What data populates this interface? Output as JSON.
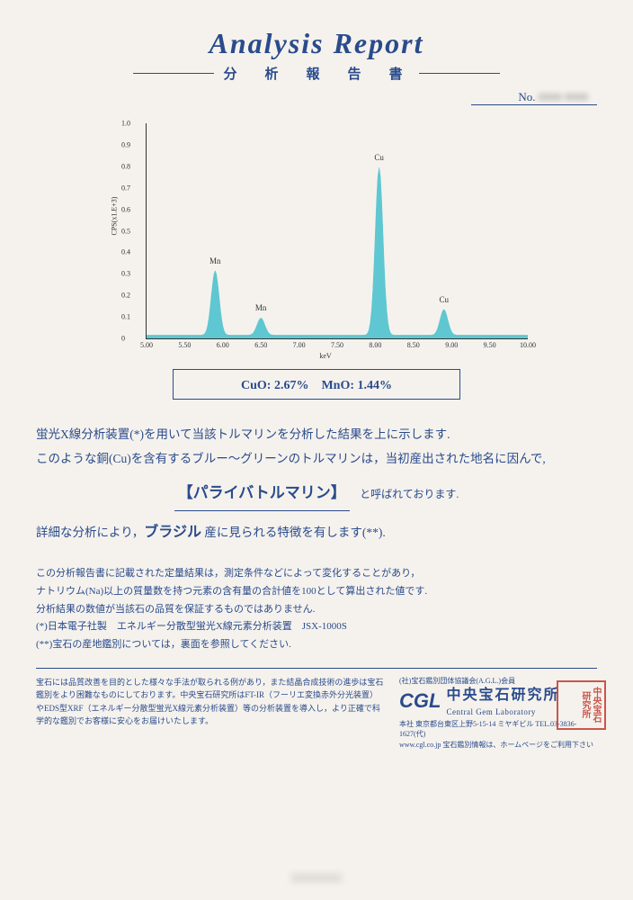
{
  "header": {
    "title": "Analysis  Report",
    "subtitle": "分　析　報　告　書",
    "no_label": "No.",
    "no_value": "0000 0000"
  },
  "chart": {
    "type": "area-spectrum",
    "xlabel": "keV",
    "ylabel": "CPS(x1.E+3)",
    "xlim": [
      5.0,
      10.0
    ],
    "ylim": [
      0,
      1.0
    ],
    "xtick_step": 0.5,
    "ytick_step": 0.1,
    "xticks": [
      "5.00",
      "5.50",
      "6.00",
      "6.50",
      "7.00",
      "7.50",
      "8.00",
      "8.50",
      "9.00",
      "9.50",
      "10.00"
    ],
    "yticks": [
      "0",
      "0.1",
      "0.2",
      "0.3",
      "0.4",
      "0.5",
      "0.6",
      "0.7",
      "0.8",
      "0.9",
      "1.0"
    ],
    "fill_color": "#5ec7d1",
    "stroke_color": "#5ec7d1",
    "background_color": "#f5f2ed",
    "axis_color": "#333333",
    "label_fontsize": 8,
    "peaks": [
      {
        "x": 5.9,
        "height": 0.3,
        "width": 0.12,
        "label": "Mn"
      },
      {
        "x": 6.5,
        "height": 0.08,
        "width": 0.12,
        "label": "Mn"
      },
      {
        "x": 8.05,
        "height": 0.78,
        "width": 0.12,
        "label": "Cu"
      },
      {
        "x": 8.9,
        "height": 0.12,
        "width": 0.12,
        "label": "Cu"
      }
    ],
    "baseline": 0.015
  },
  "result_box": {
    "text": "CuO: 2.67%　MnO: 1.44%",
    "border_color": "#2a4b8c"
  },
  "body": {
    "line1": "蛍光X線分析装置(*)を用いて当該トルマリンを分析した結果を上に示します.",
    "line2": "このような銅(Cu)を含有するブルー〜グリーンのトルマリンは，当初産出された地名に因んで,",
    "name": "【パライバトルマリン】",
    "name_suffix": "と呼ばれております.",
    "line3_pre": "詳細な分析により，",
    "line3_em": "ブラジル",
    "line3_post": " 産に見られる特徴を有します(**)."
  },
  "notes": {
    "l1": "この分析報告書に記載された定量結果は，測定条件などによって変化することがあり，",
    "l2": "ナトリウム(Na)以上の質量数を持つ元素の含有量の合計値を100として算出された値です.",
    "l3": "分析結果の数値が当該石の品質を保証するものではありません.",
    "l4": "(*)日本電子社製　エネルギー分散型蛍光X線元素分析装置　JSX-1000S",
    "l5": "(**)宝石の産地鑑別については，裏面を参照してください."
  },
  "footer": {
    "left": "宝石には品質改善を目的とした様々な手法が取られる例があり，また結晶合成技術の進歩は宝石鑑別をより困難なものにしております。中央宝石研究所はFT-IR（フーリエ変換赤外分光装置）やEDS型XRF（エネルギー分散型蛍光X線元素分析装置）等の分析装置を導入し，より正確で科学的な鑑別でお客様に安心をお届けいたします。",
    "assoc": "(社)宝石鑑別団体協議会(A.G.L.)会員",
    "org_jp": "中央宝石研究所",
    "org_en": "Central Gem Laboratory",
    "addr": "本社 東京都台東区上野5-15-14 ミヤギビル TEL.03-3836-1627(代)",
    "web": "www.cgl.co.jp 宝石鑑別情報は、ホームページをご利用下さい",
    "logo": "CGL",
    "stamp": "中央宝石研究所"
  },
  "colors": {
    "primary": "#2a4b8c",
    "chart_fill": "#5ec7d1",
    "stamp": "#c43a2e",
    "background": "#f5f2ed"
  }
}
